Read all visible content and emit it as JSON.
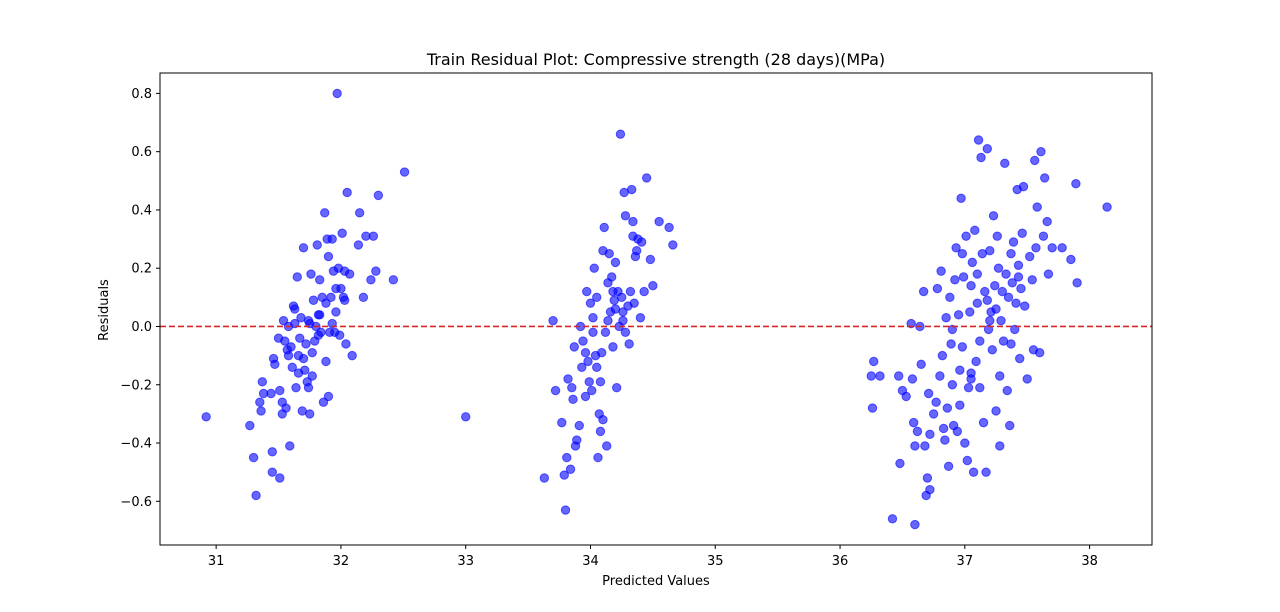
{
  "chart_data": {
    "type": "scatter",
    "title": "Train Residual Plot: Compressive strength (28 days)(MPa)",
    "xlabel": "Predicted Values",
    "ylabel": "Residuals",
    "xlim": [
      30.55,
      38.5
    ],
    "ylim": [
      -0.75,
      0.87
    ],
    "xticks": [
      31,
      32,
      33,
      34,
      35,
      36,
      37,
      38
    ],
    "yticks": [
      -0.6,
      -0.4,
      -0.2,
      0.0,
      0.2,
      0.4,
      0.6,
      0.8
    ],
    "ytick_labels": [
      "−0.6",
      "−0.4",
      "−0.2",
      "0.0",
      "0.2",
      "0.4",
      "0.6",
      "0.8"
    ],
    "grid": false,
    "reference_line": {
      "y": 0.0,
      "style": "dashed",
      "color": "#d62728"
    },
    "point_color": "#0000ff",
    "point_alpha": 0.6,
    "series": [
      {
        "points": [
          [
            30.92,
            -0.31
          ],
          [
            31.27,
            -0.34
          ],
          [
            31.3,
            -0.45
          ],
          [
            31.32,
            -0.58
          ],
          [
            31.35,
            -0.26
          ],
          [
            31.36,
            -0.29
          ],
          [
            31.37,
            -0.19
          ],
          [
            31.38,
            -0.23
          ],
          [
            31.44,
            -0.23
          ],
          [
            31.45,
            -0.43
          ],
          [
            31.45,
            -0.5
          ],
          [
            31.46,
            -0.11
          ],
          [
            31.47,
            -0.13
          ],
          [
            31.5,
            -0.04
          ],
          [
            31.51,
            -0.52
          ],
          [
            31.51,
            -0.22
          ],
          [
            31.53,
            -0.26
          ],
          [
            31.53,
            -0.3
          ],
          [
            31.54,
            0.02
          ],
          [
            31.55,
            -0.05
          ],
          [
            31.56,
            -0.28
          ],
          [
            31.57,
            -0.08
          ],
          [
            31.58,
            -0.1
          ],
          [
            31.59,
            -0.41
          ],
          [
            31.6,
            -0.07
          ],
          [
            31.61,
            -0.14
          ],
          [
            31.62,
            0.07
          ],
          [
            31.63,
            0.06
          ],
          [
            31.64,
            -0.21
          ],
          [
            31.65,
            0.17
          ],
          [
            31.66,
            -0.1
          ],
          [
            31.67,
            -0.04
          ],
          [
            31.68,
            0.03
          ],
          [
            31.69,
            -0.29
          ],
          [
            31.7,
            0.27
          ],
          [
            31.71,
            -0.15
          ],
          [
            31.72,
            -0.06
          ],
          [
            31.73,
            -0.19
          ],
          [
            31.74,
            -0.21
          ],
          [
            31.75,
            0.01
          ],
          [
            31.76,
            0.18
          ],
          [
            31.77,
            -0.09
          ],
          [
            31.78,
            0.09
          ],
          [
            31.79,
            -0.05
          ],
          [
            31.8,
            0.0
          ],
          [
            31.81,
            0.28
          ],
          [
            31.82,
            0.04
          ],
          [
            31.83,
            0.16
          ],
          [
            31.84,
            -0.02
          ],
          [
            31.85,
            0.1
          ],
          [
            31.86,
            -0.26
          ],
          [
            31.87,
            0.39
          ],
          [
            31.88,
            0.08
          ],
          [
            31.89,
            0.3
          ],
          [
            31.9,
            0.24
          ],
          [
            31.91,
            -0.02
          ],
          [
            31.92,
            0.1
          ],
          [
            31.93,
            0.3
          ],
          [
            31.94,
            0.19
          ],
          [
            31.95,
            -0.02
          ],
          [
            31.96,
            0.13
          ],
          [
            31.97,
            0.8
          ],
          [
            31.98,
            0.2
          ],
          [
            32.0,
            0.13
          ],
          [
            32.01,
            0.32
          ],
          [
            32.02,
            0.1
          ],
          [
            32.03,
            0.19
          ],
          [
            32.04,
            -0.06
          ],
          [
            32.05,
            0.46
          ],
          [
            32.07,
            0.18
          ],
          [
            32.09,
            -0.1
          ],
          [
            32.14,
            0.28
          ],
          [
            32.15,
            0.39
          ],
          [
            32.18,
            0.1
          ],
          [
            32.2,
            0.31
          ],
          [
            32.24,
            0.16
          ],
          [
            32.26,
            0.31
          ],
          [
            32.28,
            0.19
          ],
          [
            32.3,
            0.45
          ],
          [
            32.42,
            0.16
          ],
          [
            32.51,
            0.53
          ],
          [
            31.58,
            0.0
          ],
          [
            31.7,
            -0.11
          ],
          [
            31.75,
            -0.3
          ],
          [
            31.82,
            -0.03
          ],
          [
            31.9,
            -0.24
          ],
          [
            31.99,
            -0.03
          ],
          [
            32.03,
            0.09
          ],
          [
            31.63,
            0.01
          ],
          [
            31.66,
            -0.16
          ],
          [
            31.74,
            0.02
          ],
          [
            31.77,
            -0.17
          ],
          [
            31.83,
            0.04
          ],
          [
            31.88,
            -0.12
          ],
          [
            31.93,
            0.01
          ],
          [
            31.96,
            0.05
          ]
        ]
      },
      {
        "points": [
          [
            33.0,
            -0.31
          ]
        ]
      },
      {
        "points": [
          [
            33.63,
            -0.52
          ],
          [
            33.7,
            0.02
          ],
          [
            33.72,
            -0.22
          ],
          [
            33.77,
            -0.33
          ],
          [
            33.79,
            -0.51
          ],
          [
            33.8,
            -0.63
          ],
          [
            33.81,
            -0.45
          ],
          [
            33.82,
            -0.18
          ],
          [
            33.84,
            -0.49
          ],
          [
            33.85,
            -0.21
          ],
          [
            33.86,
            -0.25
          ],
          [
            33.87,
            -0.07
          ],
          [
            33.88,
            -0.41
          ],
          [
            33.89,
            -0.39
          ],
          [
            33.91,
            -0.34
          ],
          [
            33.92,
            0.0
          ],
          [
            33.94,
            -0.05
          ],
          [
            33.96,
            -0.09
          ],
          [
            33.97,
            0.12
          ],
          [
            33.98,
            -0.12
          ],
          [
            33.99,
            -0.19
          ],
          [
            34.0,
            0.08
          ],
          [
            34.01,
            -0.22
          ],
          [
            34.02,
            -0.02
          ],
          [
            34.03,
            0.2
          ],
          [
            34.04,
            -0.1
          ],
          [
            34.05,
            0.1
          ],
          [
            34.06,
            -0.45
          ],
          [
            34.07,
            -0.3
          ],
          [
            34.08,
            -0.19
          ],
          [
            34.09,
            -0.09
          ],
          [
            34.1,
            0.26
          ],
          [
            34.11,
            0.34
          ],
          [
            34.12,
            -0.02
          ],
          [
            34.13,
            -0.41
          ],
          [
            34.14,
            0.15
          ],
          [
            34.15,
            0.25
          ],
          [
            34.16,
            0.05
          ],
          [
            34.17,
            0.17
          ],
          [
            34.18,
            -0.07
          ],
          [
            34.19,
            0.09
          ],
          [
            34.2,
            0.22
          ],
          [
            34.21,
            -0.21
          ],
          [
            34.22,
            0.12
          ],
          [
            34.23,
            0.0
          ],
          [
            34.24,
            0.66
          ],
          [
            34.25,
            0.1
          ],
          [
            34.26,
            0.02
          ],
          [
            34.27,
            0.46
          ],
          [
            34.28,
            0.38
          ],
          [
            34.3,
            0.07
          ],
          [
            34.31,
            -0.06
          ],
          [
            34.32,
            0.12
          ],
          [
            34.33,
            0.47
          ],
          [
            34.34,
            0.36
          ],
          [
            34.35,
            0.08
          ],
          [
            34.36,
            0.24
          ],
          [
            34.38,
            0.3
          ],
          [
            34.4,
            0.03
          ],
          [
            34.41,
            0.29
          ],
          [
            34.43,
            0.12
          ],
          [
            34.45,
            0.51
          ],
          [
            34.48,
            0.23
          ],
          [
            34.5,
            0.14
          ],
          [
            34.55,
            0.36
          ],
          [
            34.63,
            0.34
          ],
          [
            34.66,
            0.28
          ],
          [
            34.05,
            -0.14
          ],
          [
            34.1,
            -0.32
          ],
          [
            34.18,
            0.12
          ],
          [
            34.26,
            0.05
          ],
          [
            34.34,
            0.31
          ],
          [
            33.96,
            -0.24
          ],
          [
            34.02,
            0.03
          ],
          [
            34.08,
            -0.36
          ],
          [
            34.14,
            0.02
          ],
          [
            34.2,
            0.06
          ],
          [
            34.28,
            -0.02
          ],
          [
            33.93,
            -0.14
          ],
          [
            34.37,
            0.26
          ]
        ]
      },
      {
        "points": [
          [
            36.25,
            -0.17
          ],
          [
            36.26,
            -0.28
          ],
          [
            36.27,
            -0.12
          ],
          [
            36.32,
            -0.17
          ],
          [
            36.42,
            -0.66
          ],
          [
            36.47,
            -0.17
          ],
          [
            36.48,
            -0.47
          ],
          [
            36.5,
            -0.22
          ],
          [
            36.53,
            -0.24
          ],
          [
            36.57,
            0.01
          ],
          [
            36.58,
            -0.18
          ],
          [
            36.59,
            -0.33
          ],
          [
            36.6,
            -0.68
          ],
          [
            36.6,
            -0.41
          ],
          [
            36.62,
            -0.36
          ],
          [
            36.64,
            0.0
          ],
          [
            36.65,
            -0.13
          ],
          [
            36.67,
            0.12
          ],
          [
            36.68,
            -0.41
          ],
          [
            36.69,
            -0.58
          ],
          [
            36.7,
            -0.52
          ],
          [
            36.71,
            -0.23
          ],
          [
            36.72,
            -0.37
          ],
          [
            36.75,
            -0.3
          ],
          [
            36.77,
            -0.26
          ],
          [
            36.78,
            0.13
          ],
          [
            36.8,
            -0.17
          ],
          [
            36.81,
            0.19
          ],
          [
            36.82,
            -0.1
          ],
          [
            36.84,
            -0.39
          ],
          [
            36.85,
            0.03
          ],
          [
            36.86,
            -0.28
          ],
          [
            36.87,
            -0.48
          ],
          [
            36.88,
            0.1
          ],
          [
            36.89,
            -0.06
          ],
          [
            36.9,
            -0.2
          ],
          [
            36.91,
            -0.34
          ],
          [
            36.92,
            0.16
          ],
          [
            36.93,
            0.27
          ],
          [
            36.94,
            -0.36
          ],
          [
            36.95,
            0.04
          ],
          [
            36.96,
            -0.15
          ],
          [
            36.97,
            0.44
          ],
          [
            36.98,
            -0.07
          ],
          [
            36.99,
            0.17
          ],
          [
            37.0,
            -0.4
          ],
          [
            37.01,
            0.31
          ],
          [
            37.02,
            -0.46
          ],
          [
            37.03,
            -0.21
          ],
          [
            37.04,
            0.05
          ],
          [
            37.05,
            -0.18
          ],
          [
            37.06,
            0.22
          ],
          [
            37.07,
            -0.5
          ],
          [
            37.08,
            0.33
          ],
          [
            37.09,
            -0.12
          ],
          [
            37.1,
            0.08
          ],
          [
            37.11,
            0.64
          ],
          [
            37.12,
            -0.21
          ],
          [
            37.13,
            0.58
          ],
          [
            37.14,
            0.25
          ],
          [
            37.15,
            -0.33
          ],
          [
            37.16,
            0.12
          ],
          [
            37.17,
            -0.5
          ],
          [
            37.18,
            0.61
          ],
          [
            37.19,
            -0.01
          ],
          [
            37.2,
            0.26
          ],
          [
            37.21,
            0.05
          ],
          [
            37.22,
            -0.08
          ],
          [
            37.23,
            0.38
          ],
          [
            37.24,
            0.14
          ],
          [
            37.25,
            -0.29
          ],
          [
            37.26,
            0.31
          ],
          [
            37.27,
            0.2
          ],
          [
            37.28,
            -0.17
          ],
          [
            37.29,
            0.02
          ],
          [
            37.3,
            0.12
          ],
          [
            37.31,
            -0.05
          ],
          [
            37.32,
            0.56
          ],
          [
            37.33,
            0.18
          ],
          [
            37.34,
            -0.22
          ],
          [
            37.35,
            0.1
          ],
          [
            37.36,
            -0.34
          ],
          [
            37.37,
            0.25
          ],
          [
            37.38,
            0.15
          ],
          [
            37.39,
            0.29
          ],
          [
            37.4,
            -0.01
          ],
          [
            37.41,
            0.08
          ],
          [
            37.42,
            0.47
          ],
          [
            37.43,
            0.21
          ],
          [
            37.44,
            -0.11
          ],
          [
            37.45,
            0.13
          ],
          [
            37.46,
            0.32
          ],
          [
            37.47,
            0.48
          ],
          [
            37.48,
            0.07
          ],
          [
            37.5,
            -0.18
          ],
          [
            37.52,
            0.24
          ],
          [
            37.54,
            0.16
          ],
          [
            37.55,
            -0.08
          ],
          [
            37.56,
            0.57
          ],
          [
            37.57,
            0.27
          ],
          [
            37.58,
            0.41
          ],
          [
            37.6,
            -0.09
          ],
          [
            37.61,
            0.6
          ],
          [
            37.63,
            0.31
          ],
          [
            37.64,
            0.51
          ],
          [
            37.66,
            0.36
          ],
          [
            37.67,
            0.18
          ],
          [
            37.7,
            0.27
          ],
          [
            37.78,
            0.27
          ],
          [
            37.85,
            0.23
          ],
          [
            37.89,
            0.49
          ],
          [
            37.9,
            0.15
          ],
          [
            38.14,
            0.41
          ],
          [
            36.72,
            -0.56
          ],
          [
            36.83,
            -0.35
          ],
          [
            36.96,
            -0.27
          ],
          [
            37.05,
            -0.16
          ],
          [
            37.12,
            -0.05
          ],
          [
            37.2,
            0.02
          ],
          [
            37.28,
            -0.41
          ],
          [
            37.1,
            0.18
          ],
          [
            37.05,
            0.14
          ],
          [
            36.9,
            -0.01
          ],
          [
            37.18,
            0.09
          ],
          [
            37.25,
            0.06
          ],
          [
            37.37,
            -0.06
          ],
          [
            37.43,
            0.17
          ],
          [
            36.98,
            0.25
          ]
        ]
      }
    ]
  }
}
